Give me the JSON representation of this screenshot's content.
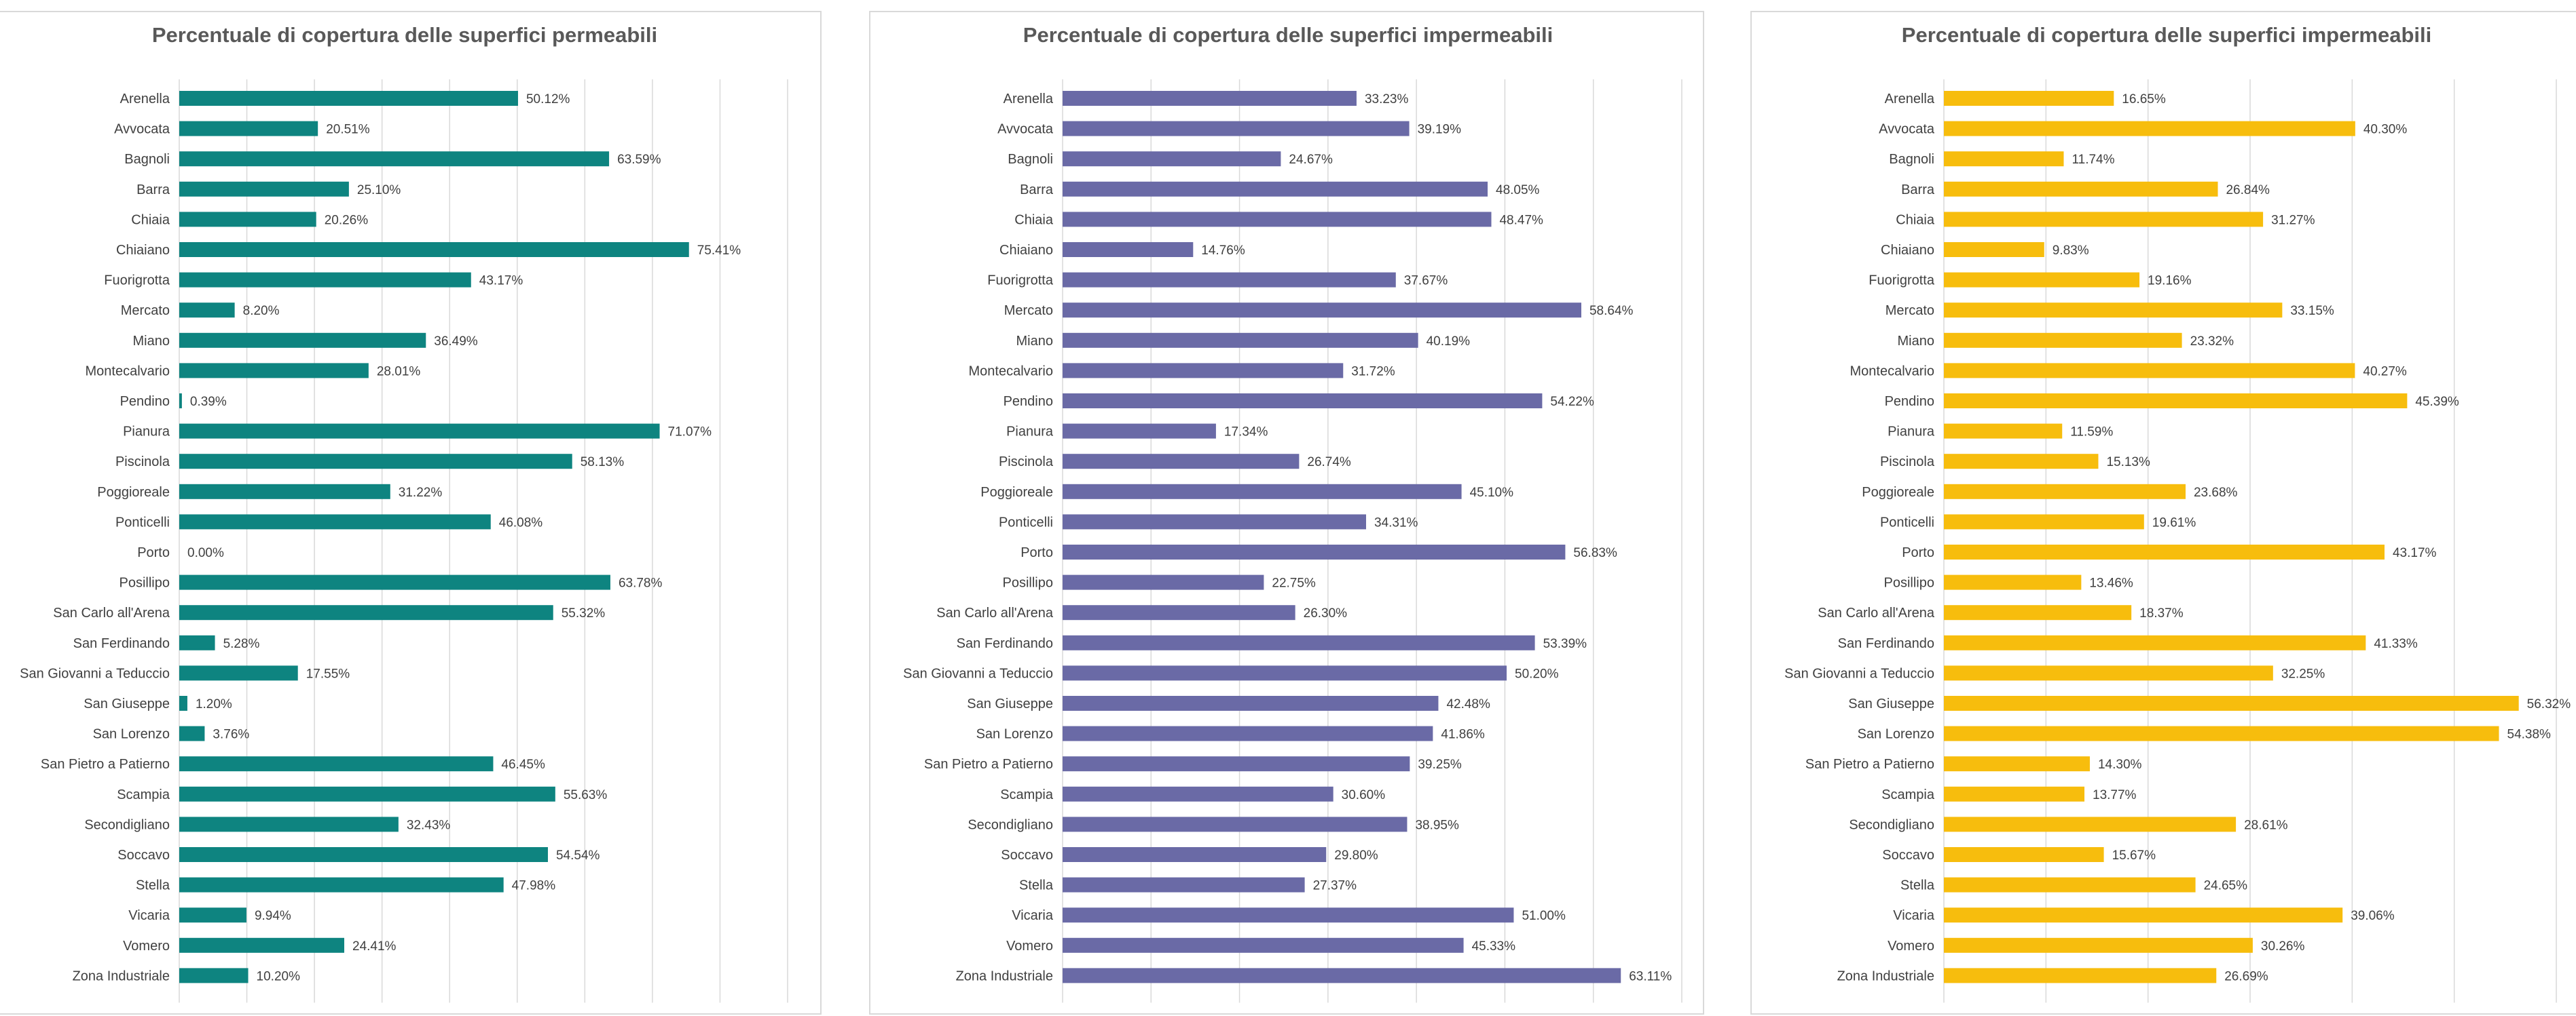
{
  "chart_data": [
    {
      "type": "bar",
      "orientation": "horizontal",
      "title": "Percentuale di copertura delle superfici permeabili",
      "color": "#0e8480",
      "categories": [
        "Arenella",
        "Avvocata",
        "Bagnoli",
        "Barra",
        "Chiaia",
        "Chiaiano",
        "Fuorigrotta",
        "Mercato",
        "Miano",
        "Montecalvario",
        "Pendino",
        "Pianura",
        "Piscinola",
        "Poggioreale",
        "Ponticelli",
        "Porto",
        "Posillipo",
        "San Carlo all'Arena",
        "San Ferdinando",
        "San Giovanni a Teduccio",
        "San Giuseppe",
        "San Lorenzo",
        "San Pietro a Patierno",
        "Scampia",
        "Secondigliano",
        "Soccavo",
        "Stella",
        "Vicaria",
        "Vomero",
        "Zona Industriale"
      ],
      "values": [
        50.12,
        20.51,
        63.59,
        25.1,
        20.26,
        75.41,
        43.17,
        8.2,
        36.49,
        28.01,
        0.39,
        71.07,
        58.13,
        31.22,
        46.08,
        0.0,
        63.78,
        55.32,
        5.28,
        17.55,
        1.2,
        3.76,
        46.45,
        55.63,
        32.43,
        54.54,
        47.98,
        9.94,
        24.41,
        10.2
      ],
      "value_labels": [
        "50.12%",
        "20.51%",
        "63.59%",
        "25.10%",
        "20.26%",
        "75.41%",
        "43.17%",
        "8.20%",
        "36.49%",
        "28.01%",
        "0.39%",
        "71.07%",
        "58.13%",
        "31.22%",
        "46.08%",
        "0.00%",
        "63.78%",
        "55.32%",
        "5.28%",
        "17.55%",
        "1.20%",
        "3.76%",
        "46.45%",
        "55.63%",
        "32.43%",
        "54.54%",
        "47.98%",
        "9.94%",
        "24.41%",
        "10.20%"
      ],
      "xlim": [
        0,
        90
      ],
      "grid": true
    },
    {
      "type": "bar",
      "orientation": "horizontal",
      "title": "Percentuale di copertura delle superfici impermeabili",
      "color": "#6a6aa6",
      "categories": [
        "Arenella",
        "Avvocata",
        "Bagnoli",
        "Barra",
        "Chiaia",
        "Chiaiano",
        "Fuorigrotta",
        "Mercato",
        "Miano",
        "Montecalvario",
        "Pendino",
        "Pianura",
        "Piscinola",
        "Poggioreale",
        "Ponticelli",
        "Porto",
        "Posillipo",
        "San Carlo all'Arena",
        "San Ferdinando",
        "San Giovanni a Teduccio",
        "San Giuseppe",
        "San Lorenzo",
        "San Pietro a Patierno",
        "Scampia",
        "Secondigliano",
        "Soccavo",
        "Stella",
        "Vicaria",
        "Vomero",
        "Zona Industriale"
      ],
      "values": [
        33.23,
        39.19,
        24.67,
        48.05,
        48.47,
        14.76,
        37.67,
        58.64,
        40.19,
        31.72,
        54.22,
        17.34,
        26.74,
        45.1,
        34.31,
        56.83,
        22.75,
        26.3,
        53.39,
        50.2,
        42.48,
        41.86,
        39.25,
        30.6,
        38.95,
        29.8,
        27.37,
        51.0,
        45.33,
        63.11
      ],
      "value_labels": [
        "33.23%",
        "39.19%",
        "24.67%",
        "48.05%",
        "48.47%",
        "14.76%",
        "37.67%",
        "58.64%",
        "40.19%",
        "31.72%",
        "54.22%",
        "17.34%",
        "26.74%",
        "45.10%",
        "34.31%",
        "56.83%",
        "22.75%",
        "26.30%",
        "53.39%",
        "50.20%",
        "42.48%",
        "41.86%",
        "39.25%",
        "30.60%",
        "38.95%",
        "29.80%",
        "27.37%",
        "51.00%",
        "45.33%",
        "63.11%"
      ],
      "xlim": [
        0,
        70
      ],
      "grid": true
    },
    {
      "type": "bar",
      "orientation": "horizontal",
      "title": "Percentuale di copertura delle superfici impermeabili",
      "color": "#f7bd0d",
      "categories": [
        "Arenella",
        "Avvocata",
        "Bagnoli",
        "Barra",
        "Chiaia",
        "Chiaiano",
        "Fuorigrotta",
        "Mercato",
        "Miano",
        "Montecalvario",
        "Pendino",
        "Pianura",
        "Piscinola",
        "Poggioreale",
        "Ponticelli",
        "Porto",
        "Posillipo",
        "San Carlo all'Arena",
        "San Ferdinando",
        "San Giovanni a Teduccio",
        "San Giuseppe",
        "San Lorenzo",
        "San Pietro a Patierno",
        "Scampia",
        "Secondigliano",
        "Soccavo",
        "Stella",
        "Vicaria",
        "Vomero",
        "Zona Industriale"
      ],
      "values": [
        16.65,
        40.3,
        11.74,
        26.84,
        31.27,
        9.83,
        19.16,
        33.15,
        23.32,
        40.27,
        45.39,
        11.59,
        15.13,
        23.68,
        19.61,
        43.17,
        13.46,
        18.37,
        41.33,
        32.25,
        56.32,
        54.38,
        14.3,
        13.77,
        28.61,
        15.67,
        24.65,
        39.06,
        30.26,
        26.69
      ],
      "value_labels": [
        "16.65%",
        "40.30%",
        "11.74%",
        "26.84%",
        "31.27%",
        "9.83%",
        "19.16%",
        "33.15%",
        "23.32%",
        "40.27%",
        "45.39%",
        "11.59%",
        "15.13%",
        "23.68%",
        "19.61%",
        "43.17%",
        "13.46%",
        "18.37%",
        "41.33%",
        "32.25%",
        "56.32%",
        "54.38%",
        "14.30%",
        "13.77%",
        "28.61%",
        "15.67%",
        "24.65%",
        "39.06%",
        "30.26%",
        "26.69%"
      ],
      "xlim": [
        0,
        60
      ],
      "grid": true
    }
  ]
}
